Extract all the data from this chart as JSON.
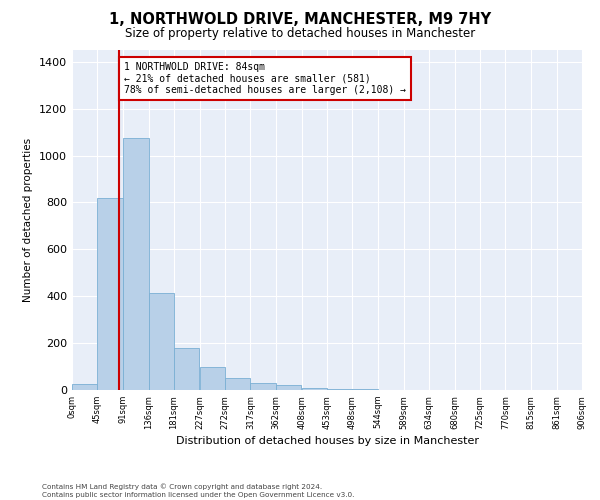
{
  "title": "1, NORTHWOLD DRIVE, MANCHESTER, M9 7HY",
  "subtitle": "Size of property relative to detached houses in Manchester",
  "xlabel": "Distribution of detached houses by size in Manchester",
  "ylabel": "Number of detached properties",
  "footer_line1": "Contains HM Land Registry data © Crown copyright and database right 2024.",
  "footer_line2": "Contains public sector information licensed under the Open Government Licence v3.0.",
  "annotation_line1": "1 NORTHWOLD DRIVE: 84sqm",
  "annotation_line2": "← 21% of detached houses are smaller (581)",
  "annotation_line3": "78% of semi-detached houses are larger (2,108) →",
  "property_size_sqm": 84,
  "bin_edges": [
    0,
    45,
    91,
    136,
    181,
    227,
    272,
    317,
    362,
    408,
    453,
    498,
    544,
    589,
    634,
    680,
    725,
    770,
    815,
    861,
    906
  ],
  "bin_counts": [
    25,
    818,
    1075,
    415,
    180,
    100,
    50,
    30,
    20,
    10,
    5,
    3,
    2,
    1,
    1,
    0,
    0,
    0,
    0,
    0
  ],
  "bar_color": "#b8d0e8",
  "bar_edge_color": "#7aafd4",
  "vline_color": "#cc0000",
  "vline_x": 84,
  "annotation_box_color": "#cc0000",
  "plot_bg_color": "#e8eef8",
  "ylim": [
    0,
    1450
  ],
  "yticks": [
    0,
    200,
    400,
    600,
    800,
    1000,
    1200,
    1400
  ]
}
